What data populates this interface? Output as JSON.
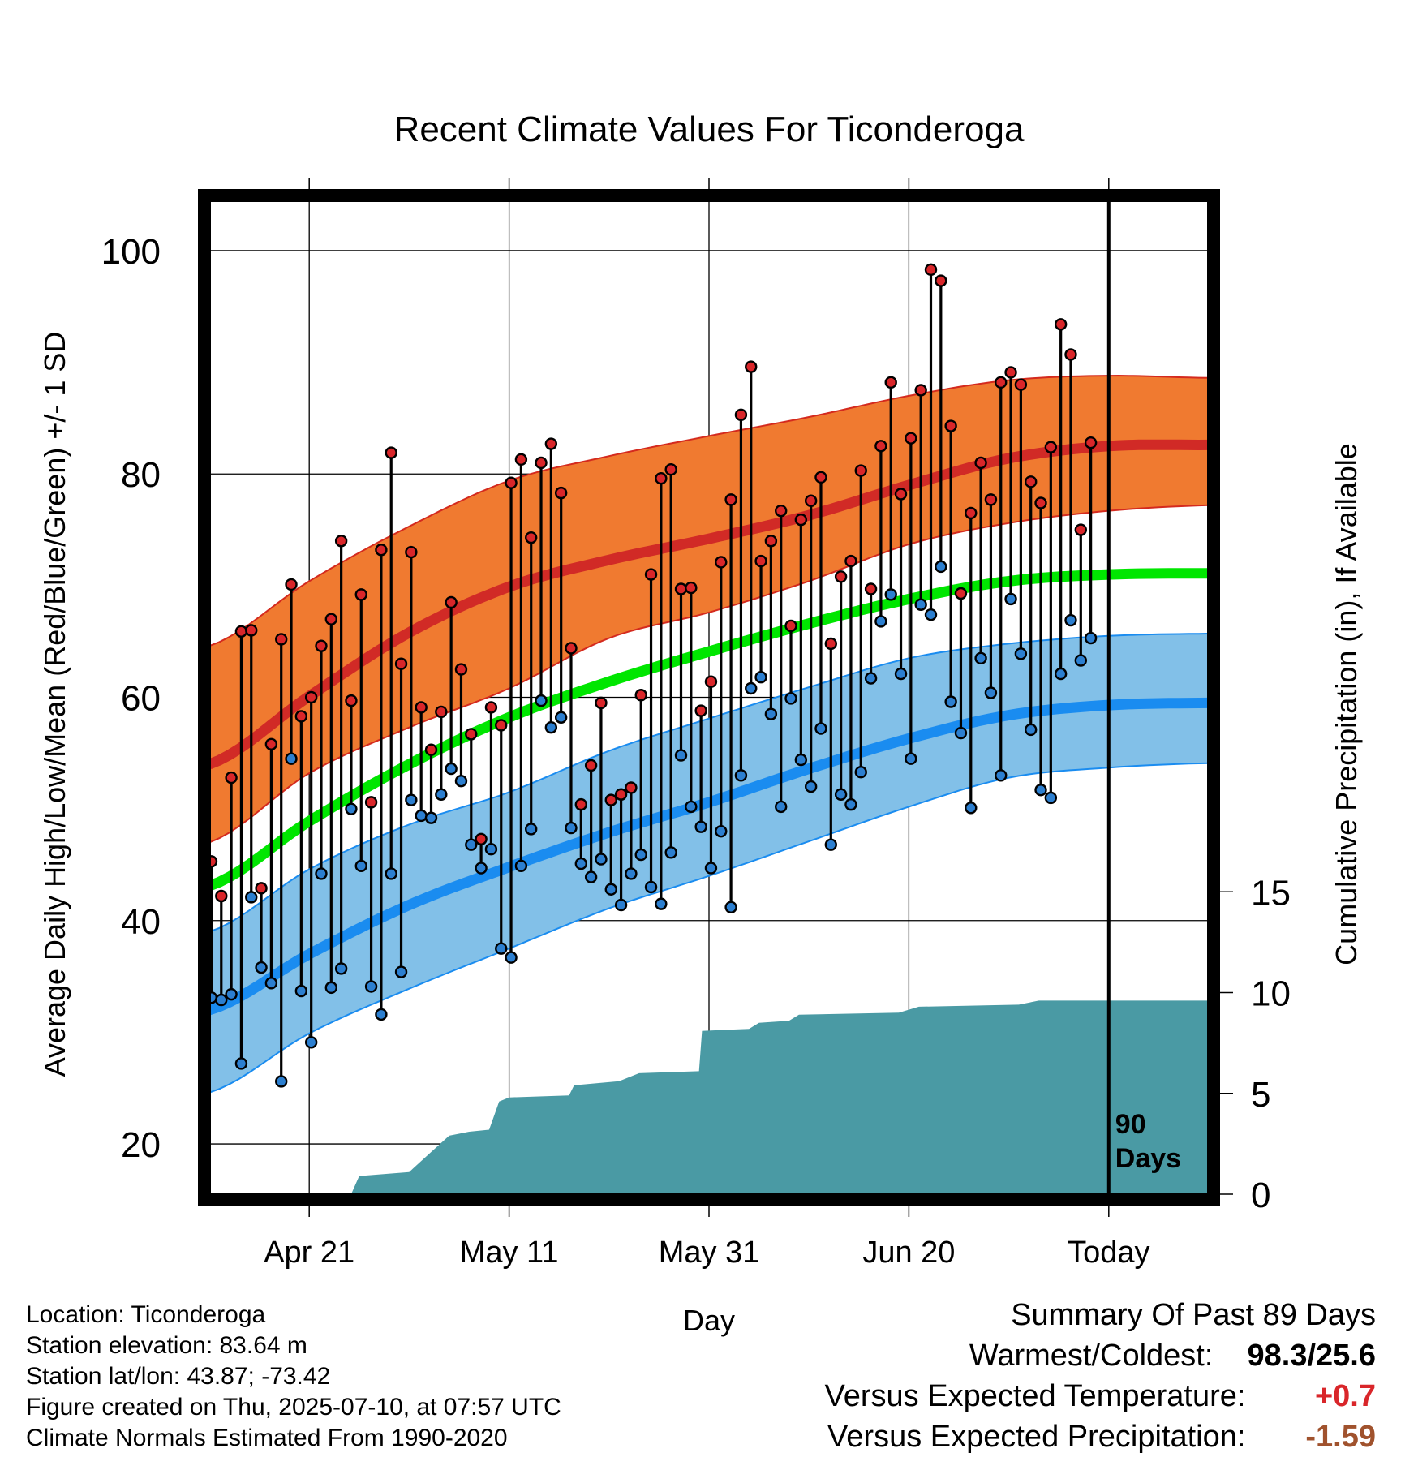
{
  "chart_data": {
    "type": "line",
    "title": "Recent Climate Values For Ticonderoga",
    "xlabel": "Day",
    "ylabel": "Average Daily High/Low/Mean (Red/Blue/Green) +/- 1 SD",
    "y2label": "Cumulative Precipitation (in), If Available",
    "x_range_days": [
      0,
      100
    ],
    "ylim": [
      15.5,
      104.5
    ],
    "y2lim": [
      0,
      20
    ],
    "y_ticks": [
      20,
      40,
      60,
      80,
      100
    ],
    "y2_ticks": [
      0,
      5,
      10,
      15
    ],
    "x_ticks": [
      {
        "day": 10,
        "label": "Apr 21"
      },
      {
        "day": 30,
        "label": "May 11"
      },
      {
        "day": 50,
        "label": "May 31"
      },
      {
        "day": 70,
        "label": "Jun 20"
      },
      {
        "day": 90,
        "label": "Today"
      }
    ],
    "today_marker": {
      "day": 90,
      "label_line1": "90",
      "label_line2": "Days"
    },
    "grid": true,
    "colors": {
      "high_band": "#f07a30",
      "high_band_edge": "#d42a1e",
      "high_mean": "#d12a26",
      "low_band": "#82c0e8",
      "low_band_edge": "#1a8cf0",
      "low_mean": "#1a8cf0",
      "mean_line": "#00e600",
      "precip": "#4a9aa4",
      "high_point": "#d9262a",
      "low_point": "#2c7fd0"
    },
    "normals": {
      "high_mean": [
        [
          0,
          54.0
        ],
        [
          10,
          60.1
        ],
        [
          20,
          65.8
        ],
        [
          30,
          69.9
        ],
        [
          40,
          72.3
        ],
        [
          50,
          74.2
        ],
        [
          60,
          76.3
        ],
        [
          70,
          79.0
        ],
        [
          80,
          81.4
        ],
        [
          90,
          82.5
        ],
        [
          100,
          82.6
        ]
      ],
      "high_upper": [
        [
          0,
          64.6
        ],
        [
          10,
          70.4
        ],
        [
          20,
          75.3
        ],
        [
          30,
          79.4
        ],
        [
          40,
          81.6
        ],
        [
          50,
          83.4
        ],
        [
          60,
          85.1
        ],
        [
          70,
          87.0
        ],
        [
          80,
          88.4
        ],
        [
          90,
          88.8
        ],
        [
          100,
          88.6
        ]
      ],
      "high_lower": [
        [
          0,
          47.0
        ],
        [
          10,
          53.2
        ],
        [
          20,
          57.3
        ],
        [
          30,
          60.8
        ],
        [
          40,
          65.3
        ],
        [
          50,
          67.6
        ],
        [
          60,
          70.4
        ],
        [
          70,
          73.7
        ],
        [
          80,
          75.6
        ],
        [
          90,
          76.7
        ],
        [
          100,
          77.2
        ]
      ],
      "mean": [
        [
          0,
          43.1
        ],
        [
          10,
          48.9
        ],
        [
          20,
          54.0
        ],
        [
          30,
          58.2
        ],
        [
          40,
          61.4
        ],
        [
          50,
          64.1
        ],
        [
          60,
          66.6
        ],
        [
          70,
          68.8
        ],
        [
          80,
          70.4
        ],
        [
          90,
          71.0
        ],
        [
          100,
          71.1
        ]
      ],
      "low_mean": [
        [
          0,
          32.0
        ],
        [
          10,
          37.0
        ],
        [
          20,
          41.4
        ],
        [
          30,
          44.8
        ],
        [
          40,
          47.9
        ],
        [
          50,
          50.6
        ],
        [
          60,
          53.6
        ],
        [
          70,
          56.3
        ],
        [
          80,
          58.4
        ],
        [
          90,
          59.3
        ],
        [
          100,
          59.5
        ]
      ],
      "low_upper": [
        [
          0,
          39.0
        ],
        [
          10,
          44.6
        ],
        [
          20,
          48.6
        ],
        [
          30,
          51.5
        ],
        [
          40,
          55.2
        ],
        [
          50,
          58.1
        ],
        [
          60,
          60.9
        ],
        [
          70,
          63.5
        ],
        [
          80,
          64.8
        ],
        [
          90,
          65.5
        ],
        [
          100,
          65.7
        ]
      ],
      "low_lower": [
        [
          0,
          24.6
        ],
        [
          10,
          29.9
        ],
        [
          20,
          33.9
        ],
        [
          30,
          37.5
        ],
        [
          40,
          41.1
        ],
        [
          50,
          44.0
        ],
        [
          60,
          47.1
        ],
        [
          70,
          50.2
        ],
        [
          80,
          52.8
        ],
        [
          90,
          53.7
        ],
        [
          100,
          54.1
        ]
      ]
    },
    "precip_cumulative": [
      [
        0,
        0
      ],
      [
        14.2,
        0
      ],
      [
        15,
        0.9
      ],
      [
        20,
        1.1
      ],
      [
        22,
        2
      ],
      [
        24,
        2.9
      ],
      [
        26,
        3.1
      ],
      [
        28,
        3.2
      ],
      [
        29,
        4.6
      ],
      [
        30,
        4.8
      ],
      [
        36,
        4.9
      ],
      [
        36.5,
        5.4
      ],
      [
        41,
        5.6
      ],
      [
        43,
        6.0
      ],
      [
        49,
        6.1
      ],
      [
        49.3,
        8.1
      ],
      [
        54,
        8.2
      ],
      [
        55,
        8.5
      ],
      [
        58,
        8.6
      ],
      [
        59,
        8.9
      ],
      [
        69,
        9.0
      ],
      [
        71,
        9.3
      ],
      [
        81,
        9.4
      ],
      [
        83,
        9.6
      ],
      [
        100,
        9.6
      ]
    ],
    "series": [
      {
        "name": "High",
        "values": [
          45.3,
          42.2,
          52.8,
          65.9,
          66.0,
          42.9,
          55.8,
          65.2,
          70.1,
          58.3,
          60.0,
          64.6,
          67.0,
          74.0,
          59.7,
          69.2,
          50.6,
          73.2,
          81.9,
          63.0,
          73.0,
          59.1,
          55.3,
          58.7,
          68.5,
          62.5,
          56.7,
          47.3,
          59.1,
          57.5,
          79.2,
          81.3,
          74.3,
          81.0,
          82.7,
          78.3,
          64.4,
          50.4,
          53.9,
          59.5,
          50.8,
          51.3,
          51.9,
          60.2,
          71.0,
          79.6,
          80.4,
          69.7,
          69.8,
          58.8,
          61.4,
          72.1,
          77.7,
          85.3,
          89.6,
          72.2,
          74.0,
          76.7,
          66.4,
          75.9,
          77.6,
          79.7,
          64.8,
          70.8,
          72.2,
          80.3,
          69.7,
          82.5,
          88.2,
          78.2,
          83.2,
          87.5,
          98.3,
          97.3,
          84.3,
          69.3,
          76.5,
          81.0,
          77.7,
          88.2,
          89.1,
          88.0,
          79.3,
          77.4,
          82.4,
          93.4,
          90.7,
          75.0,
          82.8
        ]
      },
      {
        "name": "Low",
        "values": [
          33.1,
          32.9,
          33.4,
          27.2,
          42.1,
          35.8,
          34.4,
          25.6,
          54.5,
          33.7,
          29.1,
          44.2,
          34.0,
          35.7,
          50.0,
          44.9,
          34.1,
          31.6,
          44.2,
          35.4,
          50.8,
          49.4,
          49.2,
          51.3,
          53.6,
          52.5,
          46.8,
          44.7,
          46.4,
          37.5,
          36.7,
          44.9,
          48.2,
          59.7,
          57.3,
          58.2,
          48.3,
          45.1,
          43.9,
          45.5,
          42.8,
          41.4,
          44.2,
          45.9,
          43.0,
          41.5,
          46.1,
          54.8,
          50.2,
          48.4,
          44.7,
          48.0,
          41.2,
          53.0,
          60.8,
          61.8,
          58.5,
          50.2,
          59.9,
          54.4,
          52.0,
          57.2,
          46.8,
          51.3,
          50.4,
          53.3,
          61.7,
          66.8,
          69.2,
          62.1,
          54.5,
          68.3,
          67.4,
          71.7,
          59.6,
          56.8,
          50.1,
          63.5,
          60.4,
          53.0,
          68.8,
          63.9,
          57.1,
          51.7,
          51.0,
          62.1,
          66.9,
          63.3,
          65.3
        ]
      }
    ]
  },
  "info": {
    "location": "Location: Ticonderoga",
    "elevation": "Station elevation: 83.64 m",
    "latlon": "Station lat/lon: 43.87; -73.42",
    "created": "Figure created on Thu, 2025-07-10, at 07:57 UTC",
    "normals": "Climate Normals Estimated From 1990-2020"
  },
  "summary": {
    "title": "Summary Of Past 89 Days",
    "warmest_coldest_label": "Warmest/Coldest:",
    "warmest_coldest_value": "98.3/25.6",
    "temp_label": "Versus Expected Temperature:",
    "temp_value": "+0.7",
    "temp_color": "#d9262a",
    "precip_label": "Versus Expected Precipitation:",
    "precip_value": "-1.59",
    "precip_color": "#a0522d"
  }
}
